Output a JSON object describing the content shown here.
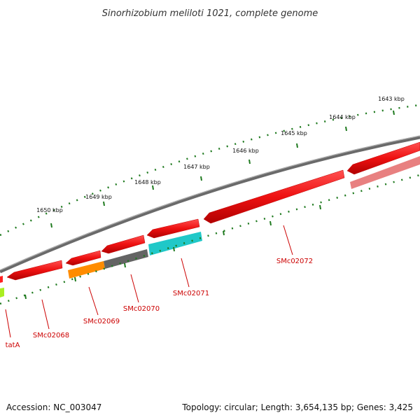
{
  "title": "Sinorhizobium meliloti 1021, complete genome",
  "footer": {
    "accession": "Accession: NC_003047",
    "summary": "Topology: circular; Length: 3,654,135 bp; Genes: 3,425"
  },
  "scale_labels": [
    "1643 kbp",
    "1644 kbp",
    "1645 kbp",
    "1646 kbp",
    "1647 kbp",
    "1648 kbp",
    "1649 kbp",
    "1650 kbp"
  ],
  "genes": [
    {
      "name": "tatA",
      "color": "#e01010"
    },
    {
      "name": "SMc02068",
      "color": "#e01010"
    },
    {
      "name": "SMc02069",
      "color": "#e01010"
    },
    {
      "name": "SMc02070",
      "color": "#e01010"
    },
    {
      "name": "SMc02071",
      "color": "#e01010"
    },
    {
      "name": "SMc02072",
      "color": "#e01010"
    }
  ],
  "colors": {
    "gene_red": "#ff1a1a",
    "backbone": "#808080",
    "tick_green": "#1f7a1f",
    "cog_orange": "#ff8c00",
    "cog_gray": "#666666",
    "cog_cyan": "#20c8c8",
    "cog_pink": "#e87f7f",
    "cog_lime": "#aaee22",
    "label_red": "#cc0000"
  }
}
